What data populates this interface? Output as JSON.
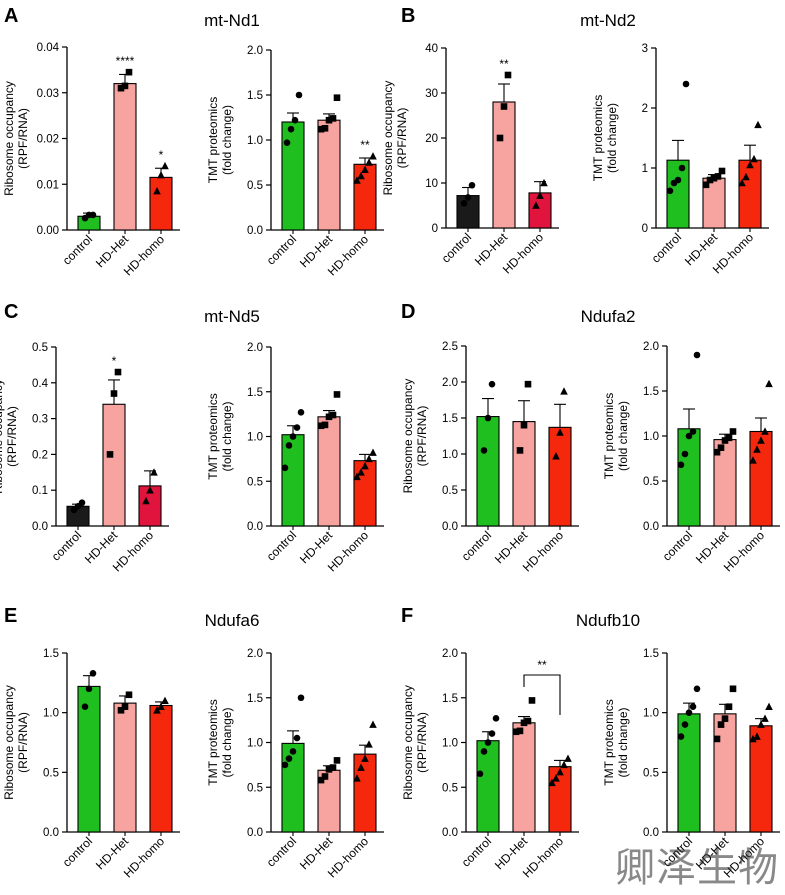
{
  "colors": {
    "control_green": "#1fbf1f",
    "control_black": "#1a1a1a",
    "het_pink": "#f7a3a0",
    "homo_red": "#f5280e",
    "homo_crimson": "#e0143c"
  },
  "watermark": "卿泽生物",
  "panels": [
    {
      "letter": "A",
      "title": "mt-Nd1"
    },
    {
      "letter": "B",
      "title": "mt-Nd2"
    },
    {
      "letter": "C",
      "title": "mt-Nd5"
    },
    {
      "letter": "D",
      "title": "Ndufa2"
    },
    {
      "letter": "E",
      "title": "Ndufa6"
    },
    {
      "letter": "F",
      "title": "Ndufb10"
    }
  ],
  "chart_data": [
    {
      "id": "A-ribo",
      "type": "bar",
      "ylabel": "Ribosome occupancy\n(RPF/RNA)",
      "categories": [
        "control",
        "HD-Het",
        "HD-homo"
      ],
      "colors": [
        "#1fbf1f",
        "#f7a3a0",
        "#f5280e"
      ],
      "values": [
        0.003,
        0.032,
        0.0115
      ],
      "errors": [
        0.0007,
        0.002,
        0.002
      ],
      "points": [
        [
          0.0026,
          0.0033,
          0.0033
        ],
        [
          0.031,
          0.0315,
          0.0345
        ],
        [
          0.0085,
          0.012,
          0.014
        ]
      ],
      "marker": [
        "circle",
        "square",
        "triangle"
      ],
      "ylim": [
        0,
        0.04
      ],
      "yticks": [
        0,
        0.01,
        0.02,
        0.03,
        0.04
      ],
      "tick_labels": [
        "0.00",
        "0.01",
        "0.02",
        "0.03",
        "0.04"
      ],
      "sig": [
        "",
        "****",
        "*"
      ]
    },
    {
      "id": "A-tmt",
      "type": "bar",
      "ylabel": "TMT proteomics\n(fold change)",
      "categories": [
        "control",
        "HD-Het",
        "HD-homo"
      ],
      "colors": [
        "#1fbf1f",
        "#f7a3a0",
        "#f5280e"
      ],
      "values": [
        1.2,
        1.22,
        0.73
      ],
      "errors": [
        0.1,
        0.07,
        0.07
      ],
      "points": [
        [
          0.97,
          1.12,
          1.22,
          1.5
        ],
        [
          1.12,
          1.13,
          1.22,
          1.24,
          1.47
        ],
        [
          0.55,
          0.6,
          0.67,
          0.75,
          0.82
        ]
      ],
      "marker": [
        "circle",
        "square",
        "triangle"
      ],
      "ylim": [
        0,
        2.0
      ],
      "yticks": [
        0,
        0.5,
        1.0,
        1.5,
        2.0
      ],
      "tick_labels": [
        "0.0",
        "0.5",
        "1.0",
        "1.5",
        "2.0"
      ],
      "sig": [
        "",
        "",
        "**"
      ]
    },
    {
      "id": "B-ribo",
      "type": "bar",
      "ylabel": "Ribosome occupancy\n(RPF/RNA)",
      "categories": [
        "control",
        "HD-Het",
        "HD-homo"
      ],
      "colors": [
        "#1a1a1a",
        "#f7a3a0",
        "#e0143c"
      ],
      "values": [
        7.2,
        28,
        7.8
      ],
      "errors": [
        1.8,
        4,
        2.5
      ],
      "points": [
        [
          5.5,
          6.8,
          9.5
        ],
        [
          20,
          27,
          34
        ],
        [
          5,
          7.2,
          10
        ]
      ],
      "marker": [
        "circle",
        "square",
        "triangle"
      ],
      "ylim": [
        0,
        40
      ],
      "yticks": [
        0,
        10,
        20,
        30,
        40
      ],
      "tick_labels": [
        "0",
        "10",
        "20",
        "30",
        "40"
      ],
      "sig": [
        "",
        "**",
        ""
      ]
    },
    {
      "id": "B-tmt",
      "type": "bar",
      "ylabel": "TMT proteomics\n(fold change)",
      "categories": [
        "control",
        "HD-Het",
        "HD-homo"
      ],
      "colors": [
        "#1fbf1f",
        "#f7a3a0",
        "#f5280e"
      ],
      "values": [
        1.13,
        0.83,
        1.13
      ],
      "errors": [
        0.33,
        0.06,
        0.25
      ],
      "points": [
        [
          0.62,
          0.75,
          0.8,
          1.0,
          2.4
        ],
        [
          0.72,
          0.8,
          0.83,
          0.86,
          0.95
        ],
        [
          0.75,
          0.85,
          1.05,
          1.15,
          1.72
        ]
      ],
      "marker": [
        "circle",
        "square",
        "triangle"
      ],
      "ylim": [
        0,
        3
      ],
      "yticks": [
        0,
        1,
        2,
        3
      ],
      "tick_labels": [
        "0",
        "1",
        "2",
        "3"
      ],
      "sig": [
        "",
        "",
        ""
      ]
    },
    {
      "id": "C-ribo",
      "type": "bar",
      "ylabel": "Ribosome occupancy\n(RPF/RNA)",
      "categories": [
        "control",
        "HD-Het",
        "HD-homo"
      ],
      "colors": [
        "#1a1a1a",
        "#f7a3a0",
        "#e0143c"
      ],
      "values": [
        0.055,
        0.34,
        0.112
      ],
      "errors": [
        0.006,
        0.068,
        0.042
      ],
      "points": [
        [
          0.045,
          0.055,
          0.065
        ],
        [
          0.2,
          0.37,
          0.43
        ],
        [
          0.07,
          0.1,
          0.15
        ]
      ],
      "marker": [
        "circle",
        "square",
        "triangle"
      ],
      "ylim": [
        0,
        0.5
      ],
      "yticks": [
        0,
        0.1,
        0.2,
        0.3,
        0.4,
        0.5
      ],
      "tick_labels": [
        "0.0",
        "0.1",
        "0.2",
        "0.3",
        "0.4",
        "0.5"
      ],
      "sig": [
        "",
        "*",
        ""
      ]
    },
    {
      "id": "C-tmt",
      "type": "bar",
      "ylabel": "TMT proteomics\n(fold change)",
      "categories": [
        "control",
        "HD-Het",
        "HD-homo"
      ],
      "colors": [
        "#1fbf1f",
        "#f7a3a0",
        "#f5280e"
      ],
      "values": [
        1.02,
        1.22,
        0.73
      ],
      "errors": [
        0.1,
        0.07,
        0.07
      ],
      "points": [
        [
          0.65,
          0.9,
          1.0,
          1.1,
          1.27
        ],
        [
          1.12,
          1.13,
          1.22,
          1.24,
          1.47
        ],
        [
          0.55,
          0.6,
          0.67,
          0.75,
          0.82
        ]
      ],
      "marker": [
        "circle",
        "square",
        "triangle"
      ],
      "ylim": [
        0,
        2.0
      ],
      "yticks": [
        0,
        0.5,
        1.0,
        1.5,
        2.0
      ],
      "tick_labels": [
        "0.0",
        "0.5",
        "1.0",
        "1.5",
        "2.0"
      ],
      "sig": [
        "",
        "",
        ""
      ]
    },
    {
      "id": "D-ribo",
      "type": "bar",
      "ylabel": "Ribosome occupancy\n(RPF/RNA)",
      "categories": [
        "control",
        "HD-Het",
        "HD-homo"
      ],
      "colors": [
        "#1fbf1f",
        "#f7a3a0",
        "#f5280e"
      ],
      "values": [
        1.52,
        1.45,
        1.37
      ],
      "errors": [
        0.25,
        0.29,
        0.32
      ],
      "points": [
        [
          1.05,
          1.5,
          1.97
        ],
        [
          1.05,
          1.4,
          1.97
        ],
        [
          0.97,
          1.3,
          1.87
        ]
      ],
      "marker": [
        "circle",
        "square",
        "triangle"
      ],
      "ylim": [
        0,
        2.5
      ],
      "yticks": [
        0,
        0.5,
        1.0,
        1.5,
        2.0,
        2.5
      ],
      "tick_labels": [
        "0.0",
        "0.5",
        "1.0",
        "1.5",
        "2.0",
        "2.5"
      ],
      "sig": [
        "",
        "",
        ""
      ]
    },
    {
      "id": "D-tmt",
      "type": "bar",
      "ylabel": "TMT proteomics\n(fold change)",
      "categories": [
        "control",
        "HD-Het",
        "HD-homo"
      ],
      "colors": [
        "#1fbf1f",
        "#f7a3a0",
        "#f5280e"
      ],
      "values": [
        1.08,
        0.96,
        1.05
      ],
      "errors": [
        0.22,
        0.06,
        0.15
      ],
      "points": [
        [
          0.68,
          0.8,
          1.0,
          1.05,
          1.9
        ],
        [
          0.82,
          0.87,
          0.95,
          0.98,
          1.05
        ],
        [
          0.73,
          0.85,
          0.95,
          1.05,
          1.58
        ]
      ],
      "marker": [
        "circle",
        "square",
        "triangle"
      ],
      "ylim": [
        0,
        2.0
      ],
      "yticks": [
        0,
        0.5,
        1.0,
        1.5,
        2.0
      ],
      "tick_labels": [
        "0.0",
        "0.5",
        "1.0",
        "1.5",
        "2.0"
      ],
      "sig": [
        "",
        "",
        ""
      ]
    },
    {
      "id": "E-ribo",
      "type": "bar",
      "ylabel": "Ribosome occupancy\n(RPF/RNA)",
      "categories": [
        "control",
        "HD-Het",
        "HD-homo"
      ],
      "colors": [
        "#1fbf1f",
        "#f7a3a0",
        "#f5280e"
      ],
      "values": [
        1.22,
        1.08,
        1.06
      ],
      "errors": [
        0.09,
        0.06,
        0.03
      ],
      "points": [
        [
          1.05,
          1.2,
          1.33
        ],
        [
          1.02,
          1.05,
          1.15
        ],
        [
          1.02,
          1.05,
          1.1
        ]
      ],
      "marker": [
        "circle",
        "square",
        "triangle"
      ],
      "ylim": [
        0,
        1.5
      ],
      "yticks": [
        0,
        0.5,
        1.0,
        1.5
      ],
      "tick_labels": [
        "0.0",
        "0.5",
        "1.0",
        "1.5"
      ],
      "sig": [
        "",
        "",
        ""
      ]
    },
    {
      "id": "E-tmt",
      "type": "bar",
      "ylabel": "TMT proteomics\n(fold change)",
      "categories": [
        "control",
        "HD-Het",
        "HD-homo"
      ],
      "colors": [
        "#1fbf1f",
        "#f7a3a0",
        "#f5280e"
      ],
      "values": [
        0.99,
        0.69,
        0.87
      ],
      "errors": [
        0.14,
        0.05,
        0.1
      ],
      "points": [
        [
          0.75,
          0.82,
          0.9,
          1.05,
          1.5
        ],
        [
          0.58,
          0.62,
          0.7,
          0.72,
          0.8
        ],
        [
          0.6,
          0.72,
          0.82,
          0.98,
          1.2
        ]
      ],
      "marker": [
        "circle",
        "square",
        "triangle"
      ],
      "ylim": [
        0,
        2.0
      ],
      "yticks": [
        0,
        0.5,
        1.0,
        1.5,
        2.0
      ],
      "tick_labels": [
        "0.0",
        "0.5",
        "1.0",
        "1.5",
        "2.0"
      ],
      "sig": [
        "",
        "",
        ""
      ]
    },
    {
      "id": "F-ribo",
      "type": "bar",
      "ylabel": "Ribosome occupancy\n(RPF/RNA)",
      "categories": [
        "control",
        "HD-Het",
        "HD-homo"
      ],
      "colors": [
        "#1fbf1f",
        "#f7a3a0",
        "#f5280e"
      ],
      "values": [
        1.02,
        1.22,
        0.73
      ],
      "errors": [
        0.1,
        0.07,
        0.07
      ],
      "points": [
        [
          0.65,
          0.9,
          1.0,
          1.1,
          1.27
        ],
        [
          1.12,
          1.13,
          1.22,
          1.24,
          1.47
        ],
        [
          0.55,
          0.6,
          0.67,
          0.75,
          0.82
        ]
      ],
      "marker": [
        "circle",
        "square",
        "triangle"
      ],
      "ylim": [
        0,
        2.0
      ],
      "yticks": [
        0,
        0.5,
        1.0,
        1.5,
        2.0
      ],
      "tick_labels": [
        "0.0",
        "0.5",
        "1.0",
        "1.5",
        "2.0"
      ],
      "sig": [
        "",
        "",
        ""
      ],
      "bracket": {
        "from": 1,
        "to": 2,
        "label": "**"
      }
    },
    {
      "id": "F-tmt",
      "type": "bar",
      "ylabel": "TMT proteomics\n(fold change)",
      "categories": [
        "control",
        "HD-Het",
        "HD-homo"
      ],
      "colors": [
        "#1fbf1f",
        "#f7a3a0",
        "#f5280e"
      ],
      "values": [
        0.99,
        0.99,
        0.89
      ],
      "errors": [
        0.09,
        0.08,
        0.06
      ],
      "points": [
        [
          0.8,
          0.9,
          1.0,
          1.05,
          1.2
        ],
        [
          0.78,
          0.9,
          0.95,
          1.05,
          1.2
        ],
        [
          0.78,
          0.8,
          0.9,
          0.95,
          1.05
        ]
      ],
      "marker": [
        "circle",
        "square",
        "triangle"
      ],
      "ylim": [
        0,
        1.5
      ],
      "yticks": [
        0,
        0.5,
        1.0,
        1.5
      ],
      "tick_labels": [
        "0.0",
        "0.5",
        "1.0",
        "1.5"
      ],
      "sig": [
        "",
        "",
        ""
      ]
    }
  ]
}
